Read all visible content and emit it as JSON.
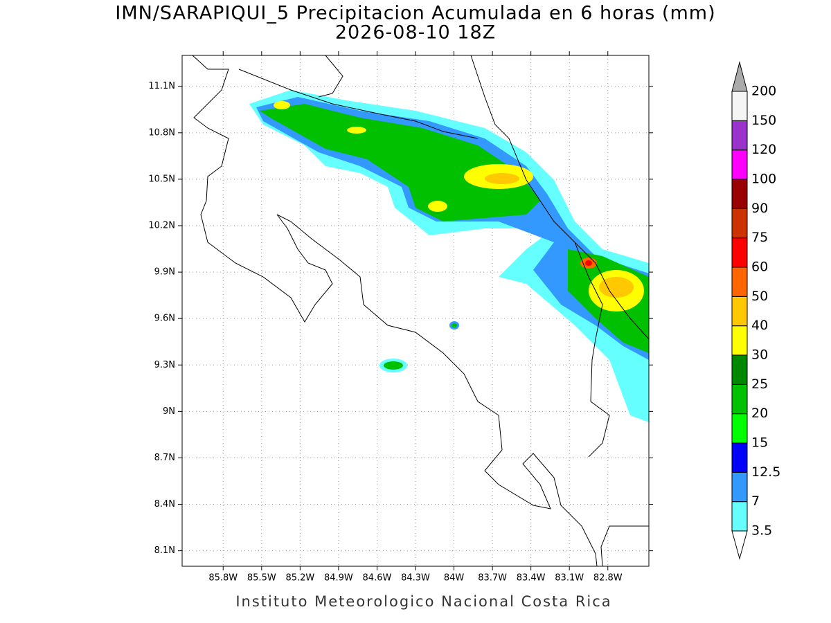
{
  "title": "IMN/SARAPIQUI_5 Precipitacion Acumulada en 6 horas (mm)",
  "subtitle": "2026-08-10 18Z",
  "footer": "Instituto Meteorologico Nacional Costa Rica",
  "map": {
    "xlim": [
      -86.12,
      -82.48
    ],
    "ylim": [
      8.0,
      11.3
    ],
    "grid": true,
    "xticks": [
      {
        "value": -85.8,
        "label": "85.8W"
      },
      {
        "value": -85.5,
        "label": "85.5W"
      },
      {
        "value": -85.2,
        "label": "85.2W"
      },
      {
        "value": -84.9,
        "label": "84.9W"
      },
      {
        "value": -84.6,
        "label": "84.6W"
      },
      {
        "value": -84.3,
        "label": "84.3W"
      },
      {
        "value": -84,
        "label": "84W"
      },
      {
        "value": -83.7,
        "label": "83.7W"
      },
      {
        "value": -83.4,
        "label": "83.4W"
      },
      {
        "value": -83.1,
        "label": "83.1W"
      },
      {
        "value": -82.8,
        "label": "82.8W"
      }
    ],
    "yticks": [
      {
        "value": 8.1,
        "label": "8.1N"
      },
      {
        "value": 8.4,
        "label": "8.4N"
      },
      {
        "value": 8.7,
        "label": "8.7N"
      },
      {
        "value": 9,
        "label": "9N"
      },
      {
        "value": 9.3,
        "label": "9.3N"
      },
      {
        "value": 9.6,
        "label": "9.6N"
      },
      {
        "value": 9.9,
        "label": "9.9N"
      },
      {
        "value": 10.2,
        "label": "10.2N"
      },
      {
        "value": 10.5,
        "label": "10.5N"
      },
      {
        "value": 10.8,
        "label": "10.8N"
      },
      {
        "value": 11.1,
        "label": "11.1N"
      }
    ]
  },
  "colorbar": {
    "levels": [
      3.5,
      7,
      12.5,
      15,
      20,
      25,
      30,
      40,
      50,
      60,
      75,
      90,
      100,
      120,
      150,
      200
    ],
    "colors": [
      "#66ffff",
      "#3399ff",
      "#0000ff",
      "#00ff00",
      "#00c000",
      "#008800",
      "#ffff00",
      "#ffc800",
      "#ff6600",
      "#ff0000",
      "#cc3300",
      "#990000",
      "#ff00ff",
      "#9933cc",
      "#f5f5f5"
    ],
    "under_color": "#ffffff",
    "over_color": "#aaaaaa"
  }
}
